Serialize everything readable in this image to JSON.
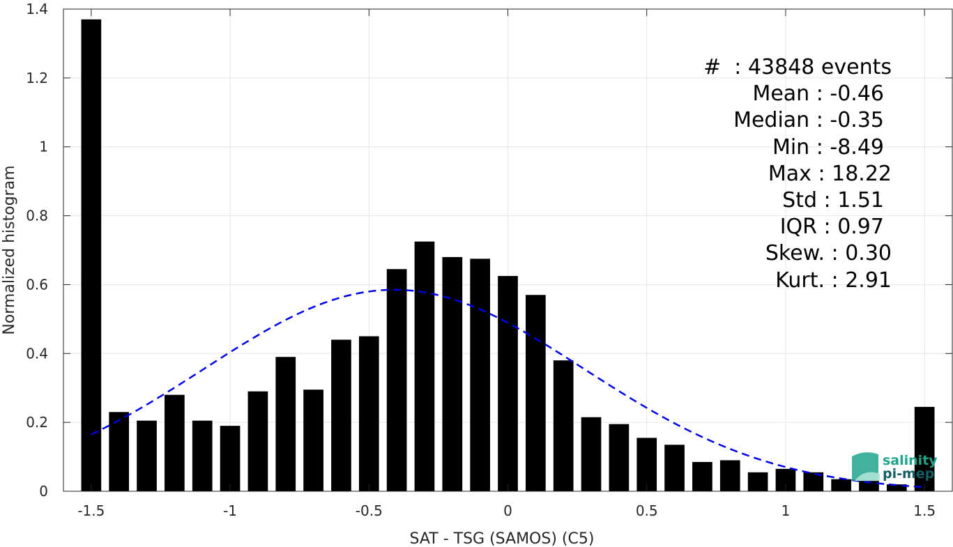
{
  "chart_data": {
    "type": "bar",
    "xlabel": "SAT - TSG (SAMOS) (C5)",
    "ylabel": "Normalized histogram",
    "xlim": [
      -1.6,
      1.6
    ],
    "ylim": [
      0,
      1.4
    ],
    "xticks": [
      -1.5,
      -1,
      -0.5,
      0,
      0.5,
      1,
      1.5
    ],
    "xtick_labels": [
      "-1.5",
      "-1",
      "-0.5",
      "0",
      "0.5",
      "1",
      "1.5"
    ],
    "yticks": [
      0,
      0.2,
      0.4,
      0.6,
      0.8,
      1,
      1.2,
      1.4
    ],
    "ytick_labels": [
      "0",
      "0.2",
      "0.4",
      "0.6",
      "0.8",
      "1",
      "1.2",
      "1.4"
    ],
    "grid": true,
    "bar_color": "#000000",
    "fit_color": "#0000e6",
    "bars": {
      "x": [
        -1.5,
        -1.4,
        -1.3,
        -1.2,
        -1.1,
        -1.0,
        -0.9,
        -0.8,
        -0.7,
        -0.6,
        -0.5,
        -0.4,
        -0.3,
        -0.2,
        -0.1,
        0.0,
        0.1,
        0.2,
        0.3,
        0.4,
        0.5,
        0.6,
        0.7,
        0.8,
        0.9,
        1.0,
        1.1,
        1.2,
        1.3,
        1.4,
        1.5
      ],
      "values": [
        1.37,
        0.23,
        0.205,
        0.28,
        0.205,
        0.19,
        0.29,
        0.39,
        0.295,
        0.44,
        0.45,
        0.645,
        0.725,
        0.68,
        0.675,
        0.625,
        0.57,
        0.38,
        0.215,
        0.195,
        0.155,
        0.135,
        0.085,
        0.09,
        0.055,
        0.065,
        0.055,
        0.035,
        0.03,
        0.02,
        0.245
      ]
    },
    "gaussian_fit": {
      "mean": -0.41,
      "std": 0.685,
      "amplitude": 0.585,
      "x_range": [
        -1.5,
        1.5
      ]
    },
    "stats": [
      {
        "label": "#  : 43848 events",
        "offset": 0
      },
      {
        "label": "Mean : -0.46",
        "offset": 1
      },
      {
        "label": "Median : -0.35",
        "offset": 1
      },
      {
        "label": "Min : -8.49",
        "offset": 1
      },
      {
        "label": "Max : 18.22",
        "offset": 0
      },
      {
        "label": "Std : 1.51",
        "offset": 1
      },
      {
        "label": "IQR : 0.97",
        "offset": 1
      },
      {
        "label": "Skew. : 0.30",
        "offset": 0
      },
      {
        "label": "Kurt. : 2.91",
        "offset": 0
      }
    ]
  },
  "logo": {
    "line1": "salinity",
    "line2": "pi-mep",
    "color1": "#1fa58c",
    "color2": "#155e63"
  }
}
